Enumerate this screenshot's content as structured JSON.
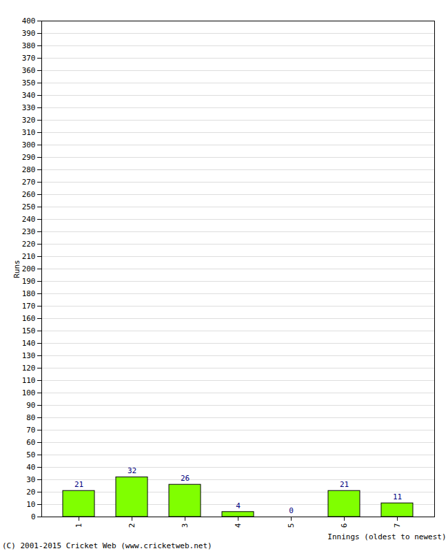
{
  "chart_data": {
    "type": "bar",
    "categories": [
      "1",
      "2",
      "3",
      "4",
      "5",
      "6",
      "7"
    ],
    "values": [
      21,
      32,
      26,
      4,
      0,
      21,
      11
    ],
    "color": "#80ff00",
    "x_label": "Innings (oldest to newest)",
    "y_label": "Runs",
    "ylim": [
      0,
      400
    ],
    "yticks": [
      0,
      10,
      20,
      30,
      40,
      50,
      60,
      70,
      80,
      90,
      100,
      110,
      120,
      130,
      140,
      150,
      160,
      170,
      180,
      190,
      200,
      210,
      220,
      230,
      240,
      250,
      260,
      270,
      280,
      290,
      300,
      310,
      320,
      330,
      340,
      350,
      360,
      370,
      380,
      390,
      400
    ],
    "grid": true,
    "data_labels": true,
    "annotations": [
      "(C) 2001-2015 Cricket Web (www.cricketweb.net)"
    ]
  }
}
